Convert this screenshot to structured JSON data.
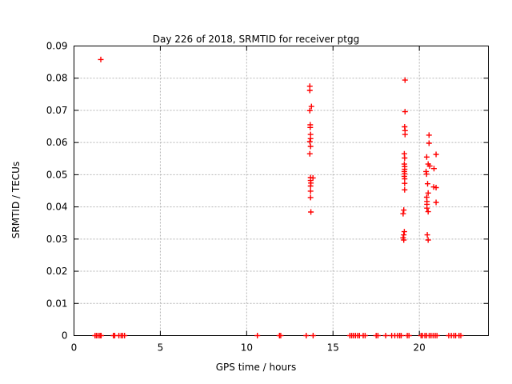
{
  "chart_data": {
    "type": "scatter",
    "title": "Day 226 of 2018, SRMTID for receiver ptgg",
    "xlabel": "GPS time / hours",
    "ylabel": "SRMTID / TECUs",
    "xlim": [
      0,
      24
    ],
    "ylim": [
      0,
      0.09
    ],
    "xticks": [
      0,
      5,
      10,
      15,
      20
    ],
    "xtick_labels": [
      "0",
      "5",
      "10",
      "15",
      "20"
    ],
    "yticks": [
      0,
      0.01,
      0.02,
      0.03,
      0.04,
      0.05,
      0.06,
      0.07,
      0.08,
      0.09
    ],
    "ytick_labels": [
      "0",
      "0.01",
      "0.02",
      "0.03",
      "0.04",
      "0.05",
      "0.06",
      "0.07",
      "0.08",
      "0.09"
    ],
    "grid": true,
    "legend": false,
    "marker": "plus",
    "colors": {
      "marker": "#ff0000",
      "grid": "#b4b4b4",
      "border": "#000000",
      "text": "#000000",
      "background": "#ffffff"
    },
    "series": [
      {
        "name": "SRMTID",
        "points": [
          [
            1.55,
            0.0858
          ],
          [
            13.66,
            0.0775
          ],
          [
            13.66,
            0.0762
          ],
          [
            13.75,
            0.0712
          ],
          [
            13.66,
            0.0699
          ],
          [
            13.68,
            0.0655
          ],
          [
            13.68,
            0.0647
          ],
          [
            13.7,
            0.0625
          ],
          [
            13.7,
            0.0612
          ],
          [
            13.66,
            0.0603
          ],
          [
            13.7,
            0.0588
          ],
          [
            13.66,
            0.0565
          ],
          [
            13.7,
            0.0491
          ],
          [
            13.84,
            0.049
          ],
          [
            13.7,
            0.0482
          ],
          [
            13.72,
            0.0474
          ],
          [
            13.7,
            0.0465
          ],
          [
            13.7,
            0.0449
          ],
          [
            13.7,
            0.0429
          ],
          [
            13.72,
            0.0384
          ],
          [
            19.17,
            0.0794
          ],
          [
            19.17,
            0.0696
          ],
          [
            19.15,
            0.0649
          ],
          [
            19.17,
            0.0637
          ],
          [
            19.17,
            0.0625
          ],
          [
            19.13,
            0.0565
          ],
          [
            19.15,
            0.0552
          ],
          [
            19.13,
            0.0533
          ],
          [
            19.15,
            0.0525
          ],
          [
            19.15,
            0.0517
          ],
          [
            19.13,
            0.051
          ],
          [
            19.15,
            0.0503
          ],
          [
            19.13,
            0.0495
          ],
          [
            19.15,
            0.0487
          ],
          [
            19.15,
            0.0473
          ],
          [
            19.15,
            0.0453
          ],
          [
            19.1,
            0.039
          ],
          [
            19.06,
            0.0379
          ],
          [
            19.13,
            0.0323
          ],
          [
            19.1,
            0.0313
          ],
          [
            19.06,
            0.0304
          ],
          [
            19.1,
            0.0297
          ],
          [
            20.56,
            0.0623
          ],
          [
            20.56,
            0.0598
          ],
          [
            20.97,
            0.0563
          ],
          [
            20.43,
            0.0555
          ],
          [
            20.51,
            0.0533
          ],
          [
            20.6,
            0.0527
          ],
          [
            20.85,
            0.0519
          ],
          [
            20.39,
            0.051
          ],
          [
            20.42,
            0.0502
          ],
          [
            20.48,
            0.0472
          ],
          [
            20.83,
            0.0462
          ],
          [
            20.97,
            0.046
          ],
          [
            20.51,
            0.0443
          ],
          [
            20.43,
            0.043
          ],
          [
            20.44,
            0.0417
          ],
          [
            20.97,
            0.0414
          ],
          [
            20.44,
            0.0408
          ],
          [
            20.44,
            0.0396
          ],
          [
            20.51,
            0.0385
          ],
          [
            20.46,
            0.0313
          ],
          [
            20.51,
            0.0297
          ],
          [
            1.22,
            0
          ],
          [
            1.3,
            0
          ],
          [
            1.4,
            0
          ],
          [
            1.5,
            0
          ],
          [
            1.57,
            0
          ],
          [
            2.28,
            0
          ],
          [
            2.36,
            0
          ],
          [
            2.6,
            0
          ],
          [
            2.73,
            0
          ],
          [
            2.82,
            0
          ],
          [
            2.93,
            0
          ],
          [
            10.62,
            0
          ],
          [
            11.9,
            0
          ],
          [
            11.97,
            0
          ],
          [
            13.45,
            0
          ],
          [
            13.85,
            0
          ],
          [
            15.98,
            0
          ],
          [
            16.08,
            0
          ],
          [
            16.18,
            0
          ],
          [
            16.3,
            0
          ],
          [
            16.43,
            0
          ],
          [
            16.53,
            0
          ],
          [
            16.75,
            0
          ],
          [
            16.86,
            0
          ],
          [
            17.5,
            0
          ],
          [
            17.6,
            0
          ],
          [
            18.05,
            0
          ],
          [
            18.4,
            0
          ],
          [
            18.58,
            0
          ],
          [
            18.74,
            0
          ],
          [
            18.86,
            0
          ],
          [
            18.95,
            0
          ],
          [
            19.3,
            0
          ],
          [
            19.4,
            0
          ],
          [
            20.1,
            0
          ],
          [
            20.18,
            0
          ],
          [
            20.32,
            0
          ],
          [
            20.42,
            0
          ],
          [
            20.57,
            0
          ],
          [
            20.68,
            0
          ],
          [
            20.8,
            0
          ],
          [
            20.92,
            0
          ],
          [
            21.02,
            0
          ],
          [
            21.7,
            0
          ],
          [
            21.85,
            0
          ],
          [
            22.0,
            0
          ],
          [
            22.1,
            0
          ],
          [
            22.3,
            0
          ],
          [
            22.4,
            0
          ]
        ]
      }
    ]
  }
}
